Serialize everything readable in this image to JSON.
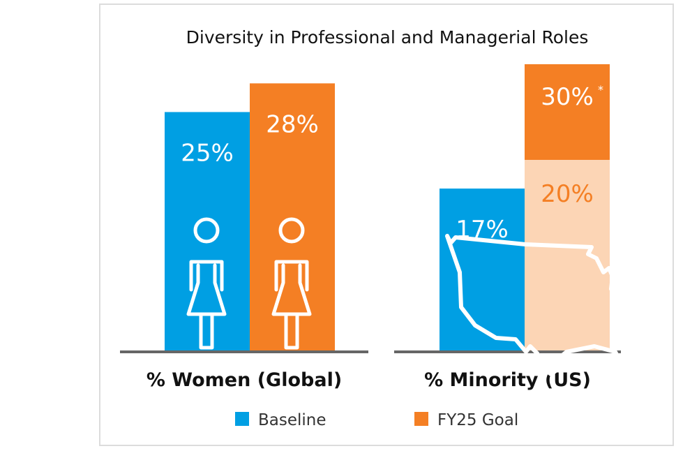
{
  "chart_data": {
    "type": "bar",
    "title": "Diversity in Professional and Managerial Roles",
    "unit": "%",
    "groups": [
      {
        "label": "% Women (Global)",
        "icon": "woman-icon",
        "bars": [
          {
            "series": "Baseline",
            "value": 25,
            "label": "25%"
          },
          {
            "series": "FY25 Goal",
            "value": 28,
            "label": "28%"
          }
        ]
      },
      {
        "label": "% Minority (US)",
        "icon": "us-map-icon",
        "bars": [
          {
            "series": "Baseline",
            "value": 17,
            "label": "17%"
          },
          {
            "series": "FY25 Goal",
            "value": 20,
            "label": "20%",
            "stack_top": 30,
            "stack_top_label": "30%",
            "footnote_mark": "*"
          }
        ]
      }
    ],
    "legend": [
      {
        "name": "Baseline",
        "color": "#009fe3"
      },
      {
        "name": "FY25 Goal",
        "color": "#f47f24"
      }
    ],
    "legend_position": "bottom",
    "colors": {
      "baseline": "#009fe3",
      "goal": "#f47f24",
      "goal_light": "#fcd5b5",
      "axis": "#666666"
    },
    "grid": false
  }
}
